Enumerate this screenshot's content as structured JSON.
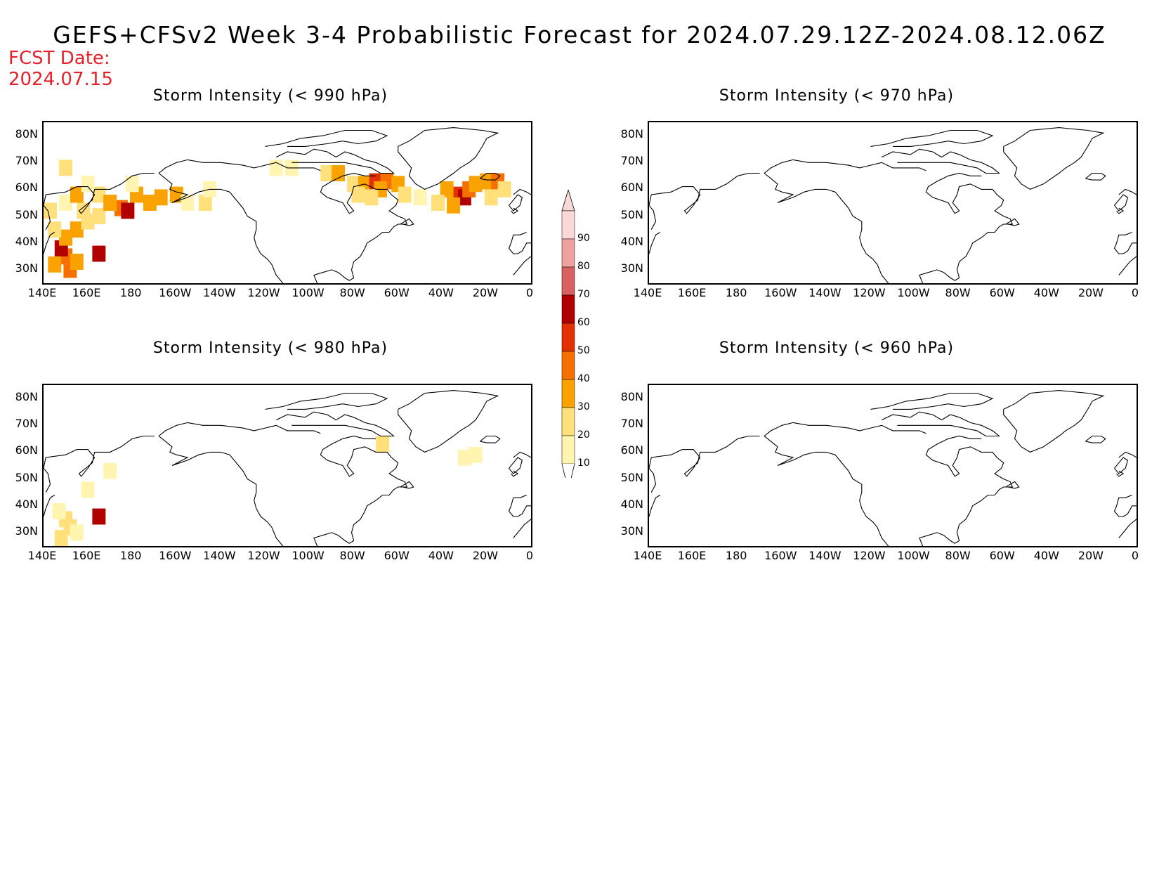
{
  "title": "GEFS+CFSv2 Week 3-4 Probabilistic Forecast for 2024.07.29.12Z-2024.08.12.06Z",
  "fcst_date_label": "FCST Date:",
  "fcst_date": "2024.07.15",
  "panels": [
    {
      "title": "Storm Intensity (< 990 hPa)"
    },
    {
      "title": "Storm Intensity (< 970 hPa)"
    },
    {
      "title": "Storm Intensity (< 980 hPa)"
    },
    {
      "title": "Storm Intensity (< 960 hPa)"
    }
  ],
  "lat_labels": [
    "80N",
    "70N",
    "60N",
    "50N",
    "40N",
    "30N"
  ],
  "lon_labels": [
    "140E",
    "160E",
    "180",
    "160W",
    "140W",
    "120W",
    "100W",
    "80W",
    "60W",
    "40W",
    "20W",
    "0"
  ],
  "colorbar": {
    "levels": [
      "10",
      "20",
      "30",
      "40",
      "50",
      "60",
      "70",
      "80",
      "90"
    ],
    "colors": [
      "#fff5b0",
      "#ffe07a",
      "#f9a200",
      "#f57000",
      "#e33000",
      "#b00000",
      "#d86060",
      "#f0a0a0",
      "#fbd8d8"
    ]
  },
  "chart_data": {
    "type": "heatmap",
    "units": "probability (%)",
    "fields": [
      {
        "panel": "Storm Intensity (< 990 hPa)",
        "cells": [
          {
            "lon": 150,
            "lat": 35,
            "v": 40
          },
          {
            "lon": 148,
            "lat": 38,
            "v": 60
          },
          {
            "lon": 145,
            "lat": 32,
            "v": 30
          },
          {
            "lon": 152,
            "lat": 30,
            "v": 40
          },
          {
            "lon": 155,
            "lat": 33,
            "v": 30
          },
          {
            "lon": 150,
            "lat": 42,
            "v": 30
          },
          {
            "lon": 145,
            "lat": 45,
            "v": 20
          },
          {
            "lon": 155,
            "lat": 45,
            "v": 30
          },
          {
            "lon": 160,
            "lat": 48,
            "v": 20
          },
          {
            "lon": 158,
            "lat": 52,
            "v": 20
          },
          {
            "lon": 165,
            "lat": 50,
            "v": 20
          },
          {
            "lon": 143,
            "lat": 52,
            "v": 20
          },
          {
            "lon": 150,
            "lat": 55,
            "v": 10
          },
          {
            "lon": 155,
            "lat": 58,
            "v": 30
          },
          {
            "lon": 165,
            "lat": 58,
            "v": 20
          },
          {
            "lon": 175,
            "lat": 53,
            "v": 40
          },
          {
            "lon": 178,
            "lat": 52,
            "v": 60
          },
          {
            "lon": 170,
            "lat": 55,
            "v": 30
          },
          {
            "lon": 182,
            "lat": 58,
            "v": 30
          },
          {
            "lon": 188,
            "lat": 55,
            "v": 30
          },
          {
            "lon": 193,
            "lat": 57,
            "v": 30
          },
          {
            "lon": 200,
            "lat": 58,
            "v": 30
          },
          {
            "lon": 205,
            "lat": 55,
            "v": 10
          },
          {
            "lon": 213,
            "lat": 55,
            "v": 20
          },
          {
            "lon": 150,
            "lat": 68,
            "v": 20
          },
          {
            "lon": 160,
            "lat": 62,
            "v": 10
          },
          {
            "lon": 165,
            "lat": 36,
            "v": 60
          },
          {
            "lon": 215,
            "lat": 60,
            "v": 10
          },
          {
            "lon": 180,
            "lat": 62,
            "v": 10
          },
          {
            "lon": 245,
            "lat": 68,
            "v": 10
          },
          {
            "lon": 252,
            "lat": 68,
            "v": 10
          },
          {
            "lon": 268,
            "lat": 66,
            "v": 20
          },
          {
            "lon": 273,
            "lat": 66,
            "v": 30
          },
          {
            "lon": 280,
            "lat": 62,
            "v": 20
          },
          {
            "lon": 285,
            "lat": 62,
            "v": 30
          },
          {
            "lon": 290,
            "lat": 63,
            "v": 50
          },
          {
            "lon": 295,
            "lat": 63,
            "v": 40
          },
          {
            "lon": 300,
            "lat": 62,
            "v": 30
          },
          {
            "lon": 292,
            "lat": 60,
            "v": 30
          },
          {
            "lon": 282,
            "lat": 58,
            "v": 20
          },
          {
            "lon": 288,
            "lat": 57,
            "v": 20
          },
          {
            "lon": 303,
            "lat": 58,
            "v": 20
          },
          {
            "lon": 310,
            "lat": 57,
            "v": 10
          },
          {
            "lon": 322,
            "lat": 60,
            "v": 30
          },
          {
            "lon": 328,
            "lat": 58,
            "v": 50
          },
          {
            "lon": 330,
            "lat": 57,
            "v": 60
          },
          {
            "lon": 332,
            "lat": 60,
            "v": 40
          },
          {
            "lon": 335,
            "lat": 62,
            "v": 30
          },
          {
            "lon": 340,
            "lat": 63,
            "v": 30
          },
          {
            "lon": 345,
            "lat": 63,
            "v": 40
          },
          {
            "lon": 348,
            "lat": 60,
            "v": 20
          },
          {
            "lon": 325,
            "lat": 54,
            "v": 30
          },
          {
            "lon": 318,
            "lat": 55,
            "v": 20
          },
          {
            "lon": 342,
            "lat": 57,
            "v": 20
          }
        ]
      },
      {
        "panel": "Storm Intensity (< 970 hPa)",
        "cells": []
      },
      {
        "panel": "Storm Intensity (< 980 hPa)",
        "cells": [
          {
            "lon": 150,
            "lat": 35,
            "v": 20
          },
          {
            "lon": 152,
            "lat": 32,
            "v": 20
          },
          {
            "lon": 147,
            "lat": 38,
            "v": 10
          },
          {
            "lon": 155,
            "lat": 30,
            "v": 10
          },
          {
            "lon": 148,
            "lat": 28,
            "v": 20
          },
          {
            "lon": 165,
            "lat": 36,
            "v": 60
          },
          {
            "lon": 170,
            "lat": 53,
            "v": 10
          },
          {
            "lon": 160,
            "lat": 46,
            "v": 10
          },
          {
            "lon": 293,
            "lat": 63,
            "v": 20
          },
          {
            "lon": 330,
            "lat": 58,
            "v": 10
          },
          {
            "lon": 335,
            "lat": 59,
            "v": 10
          }
        ]
      },
      {
        "panel": "Storm Intensity (< 960 hPa)",
        "cells": []
      }
    ],
    "lon_range": [
      140,
      360
    ],
    "lat_range": [
      25,
      85
    ]
  }
}
